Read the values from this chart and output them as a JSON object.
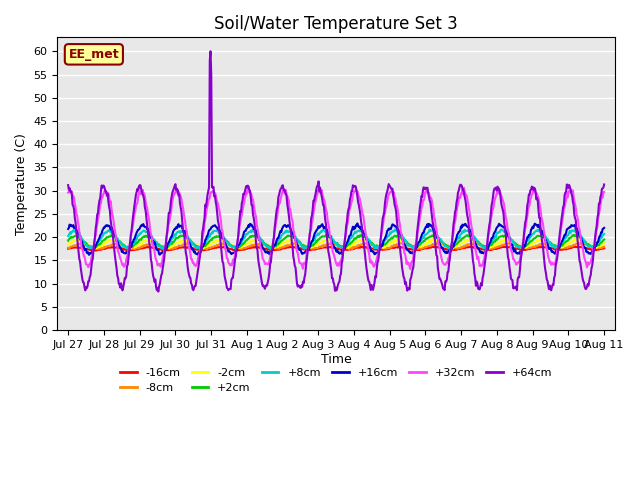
{
  "title": "Soil/Water Temperature Set 3",
  "xlabel": "Time",
  "ylabel": "Temperature (C)",
  "ylim": [
    0,
    63
  ],
  "yticks": [
    0,
    5,
    10,
    15,
    20,
    25,
    30,
    35,
    40,
    45,
    50,
    55,
    60
  ],
  "plot_bg_color": "#e8e8e8",
  "legend_label": "EE_met",
  "series": [
    {
      "label": "-16cm",
      "color": "#ff0000",
      "linewidth": 1.5
    },
    {
      "label": "-8cm",
      "color": "#ff8800",
      "linewidth": 1.5
    },
    {
      "label": "-2cm",
      "color": "#ffff00",
      "linewidth": 1.5
    },
    {
      "label": "+2cm",
      "color": "#00cc00",
      "linewidth": 1.5
    },
    {
      "label": "+8cm",
      "color": "#00cccc",
      "linewidth": 1.5
    },
    {
      "label": "+16cm",
      "color": "#0000cc",
      "linewidth": 1.5
    },
    {
      "label": "+32cm",
      "color": "#ff44ff",
      "linewidth": 1.5
    },
    {
      "label": "+64cm",
      "color": "#8800cc",
      "linewidth": 1.5
    }
  ],
  "x_tick_positions": [
    0,
    1,
    2,
    3,
    4,
    5,
    6,
    7,
    8,
    9,
    10,
    11,
    12,
    13,
    14,
    15
  ],
  "x_tick_labels": [
    "Jul 27",
    "Jul 28",
    "Jul 29",
    "Jul 30",
    "Jul 31",
    "Aug 1",
    "Aug 2",
    "Aug 3",
    "Aug 4",
    "Aug 5",
    "Aug 6",
    "Aug 7",
    "Aug 8",
    "Aug 9",
    "Aug 10",
    "Aug 11"
  ],
  "num_days": 15,
  "pts_per_day": 48
}
